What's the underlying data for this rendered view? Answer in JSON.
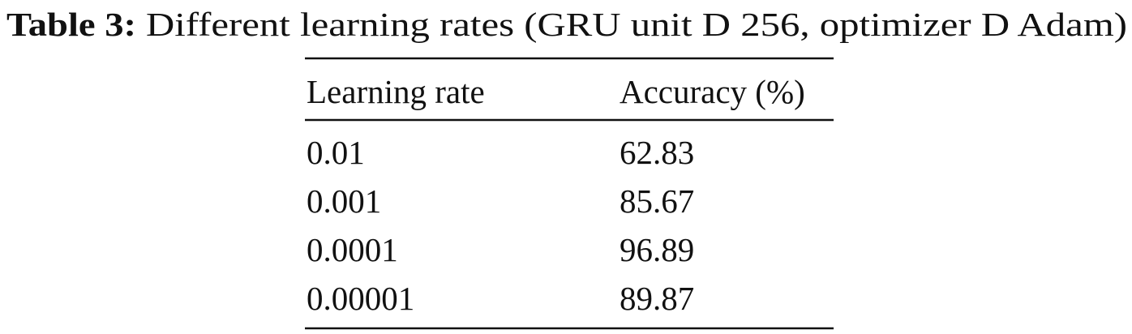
{
  "caption": {
    "label": "Table 3:",
    "text": "Different learning rates (GRU unit D 256, optimizer D Adam)"
  },
  "table": {
    "header": [
      "Learning rate",
      "Accuracy (%)"
    ],
    "rows": [
      [
        "0.01",
        "62.83"
      ],
      [
        "0.001",
        "85.67"
      ],
      [
        "0.0001",
        "96.89"
      ],
      [
        "0.00001",
        "89.87"
      ]
    ]
  }
}
